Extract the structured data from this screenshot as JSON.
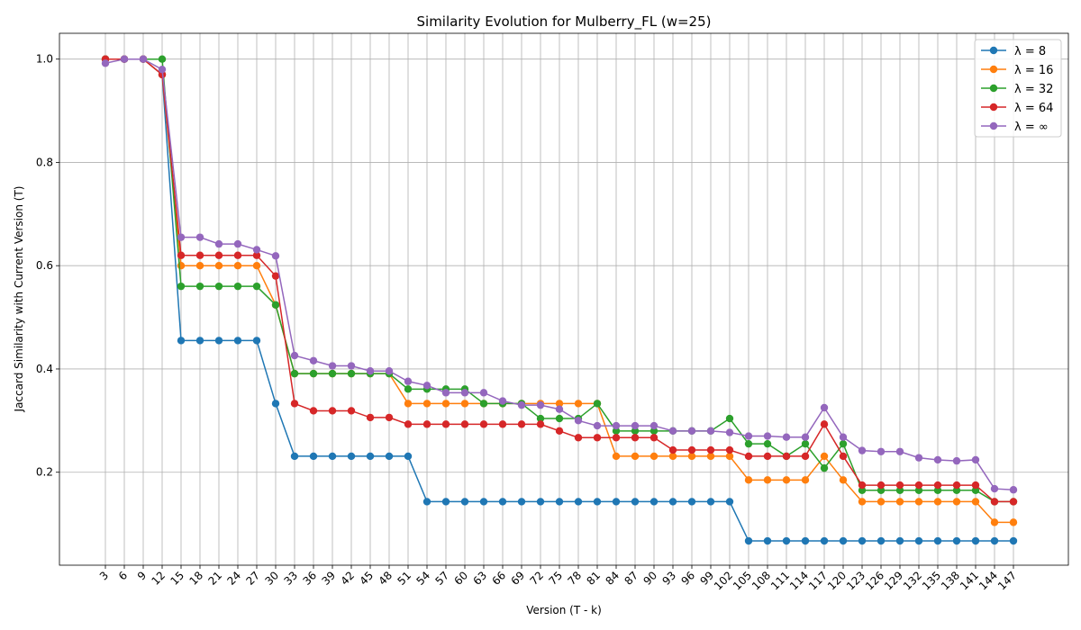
{
  "chart_data": {
    "type": "line",
    "title": "Similarity Evolution for Mulberry_FL (w=25)",
    "xlabel": "Version (T - k)",
    "ylabel": "Jaccard Similarity with Current Version (T)",
    "x": [
      3,
      6,
      9,
      12,
      15,
      18,
      21,
      24,
      27,
      30,
      33,
      36,
      39,
      42,
      45,
      48,
      51,
      54,
      57,
      60,
      63,
      66,
      69,
      72,
      75,
      78,
      81,
      84,
      87,
      90,
      93,
      96,
      99,
      102,
      105,
      108,
      111,
      114,
      117,
      120,
      123,
      126,
      129,
      132,
      135,
      138,
      141,
      144,
      147
    ],
    "ylim": [
      0.02,
      1.05
    ],
    "yticks": [
      0.2,
      0.4,
      0.6,
      0.8,
      1.0
    ],
    "grid": true,
    "legend_position": "top-right",
    "series": [
      {
        "name": "λ = 8",
        "color": "#1f77b4",
        "values": [
          1.0,
          1.0,
          1.0,
          0.97,
          0.455,
          0.455,
          0.455,
          0.455,
          0.455,
          0.333,
          0.231,
          0.231,
          0.231,
          0.231,
          0.231,
          0.231,
          0.231,
          0.143,
          0.143,
          0.143,
          0.143,
          0.143,
          0.143,
          0.143,
          0.143,
          0.143,
          0.143,
          0.143,
          0.143,
          0.143,
          0.143,
          0.143,
          0.143,
          0.143,
          0.067,
          0.067,
          0.067,
          0.067,
          0.067,
          0.067,
          0.067,
          0.067,
          0.067,
          0.067,
          0.067,
          0.067,
          0.067,
          0.067,
          0.067
        ]
      },
      {
        "name": "λ = 16",
        "color": "#ff7f0e",
        "values": [
          1.0,
          1.0,
          1.0,
          0.97,
          0.6,
          0.6,
          0.6,
          0.6,
          0.6,
          0.524,
          0.391,
          0.391,
          0.391,
          0.391,
          0.391,
          0.391,
          0.333,
          0.333,
          0.333,
          0.333,
          0.333,
          0.333,
          0.333,
          0.333,
          0.333,
          0.333,
          0.333,
          0.231,
          0.231,
          0.231,
          0.231,
          0.231,
          0.231,
          0.231,
          0.185,
          0.185,
          0.185,
          0.185,
          0.231,
          0.185,
          0.143,
          0.143,
          0.143,
          0.143,
          0.143,
          0.143,
          0.143,
          0.103,
          0.103
        ]
      },
      {
        "name": "λ = 32",
        "color": "#2ca02c",
        "values": [
          1.0,
          1.0,
          1.0,
          1.0,
          0.56,
          0.56,
          0.56,
          0.56,
          0.56,
          0.524,
          0.391,
          0.391,
          0.391,
          0.391,
          0.391,
          0.391,
          0.361,
          0.361,
          0.361,
          0.361,
          0.333,
          0.333,
          0.333,
          0.304,
          0.304,
          0.304,
          0.333,
          0.28,
          0.28,
          0.28,
          0.28,
          0.28,
          0.28,
          0.304,
          0.255,
          0.255,
          0.231,
          0.255,
          0.208,
          0.255,
          0.165,
          0.165,
          0.165,
          0.165,
          0.165,
          0.165,
          0.165,
          0.143,
          0.143
        ]
      },
      {
        "name": "λ = 64",
        "color": "#d62728",
        "values": [
          1.0,
          1.0,
          1.0,
          0.97,
          0.62,
          0.62,
          0.62,
          0.62,
          0.62,
          0.58,
          0.333,
          0.319,
          0.319,
          0.319,
          0.306,
          0.306,
          0.293,
          0.293,
          0.293,
          0.293,
          0.293,
          0.293,
          0.293,
          0.293,
          0.28,
          0.267,
          0.267,
          0.267,
          0.267,
          0.267,
          0.243,
          0.243,
          0.243,
          0.243,
          0.231,
          0.231,
          0.231,
          0.231,
          0.293,
          0.231,
          0.175,
          0.175,
          0.175,
          0.175,
          0.175,
          0.175,
          0.175,
          0.143,
          0.143
        ]
      },
      {
        "name": "λ = ∞",
        "color": "#9467bd",
        "values": [
          0.992,
          1.0,
          1.0,
          0.98,
          0.655,
          0.655,
          0.642,
          0.642,
          0.631,
          0.619,
          0.426,
          0.416,
          0.406,
          0.406,
          0.396,
          0.396,
          0.376,
          0.368,
          0.354,
          0.354,
          0.354,
          0.338,
          0.33,
          0.33,
          0.322,
          0.3,
          0.29,
          0.29,
          0.29,
          0.29,
          0.28,
          0.28,
          0.28,
          0.277,
          0.27,
          0.27,
          0.268,
          0.268,
          0.325,
          0.268,
          0.242,
          0.24,
          0.24,
          0.228,
          0.224,
          0.222,
          0.224,
          0.168,
          0.166
        ]
      }
    ]
  }
}
